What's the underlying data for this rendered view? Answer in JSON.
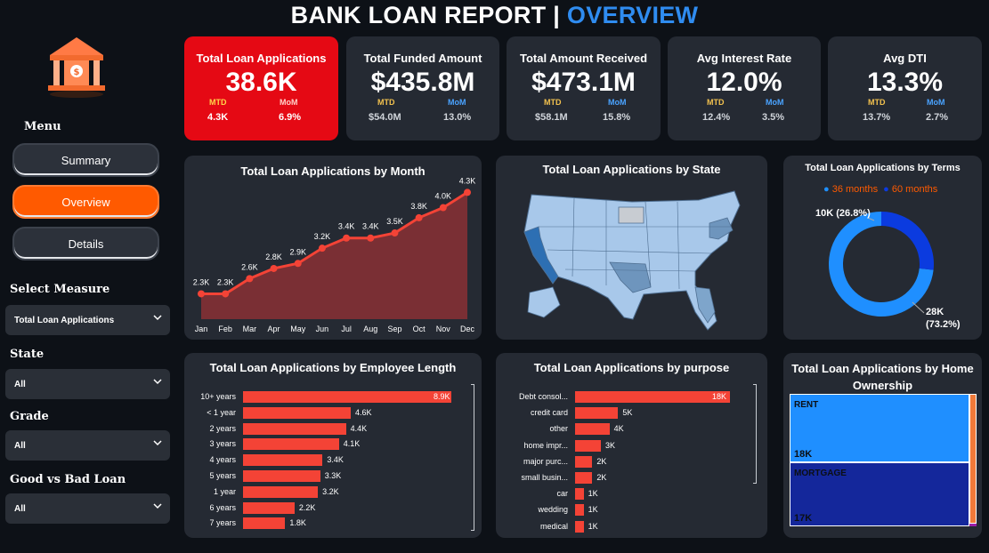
{
  "header": {
    "title_main": "BANK LOAN REPORT | ",
    "title_highlight": "OVERVIEW"
  },
  "sidebar": {
    "menu_label": "Menu",
    "menu_items": [
      {
        "label": "Summary",
        "active": false
      },
      {
        "label": "Overview",
        "active": true
      },
      {
        "label": "Details",
        "active": false
      }
    ],
    "filters": [
      {
        "label": "Select Measure",
        "value": "Total Loan Applications"
      },
      {
        "label": "State",
        "value": "All"
      },
      {
        "label": "Grade",
        "value": "All"
      },
      {
        "label": "Good vs Bad Loan",
        "value": "All"
      }
    ]
  },
  "kpis": [
    {
      "label": "Total Loan Applications",
      "value": "38.6K",
      "mtd_label": "MTD",
      "mom_label": "MoM",
      "mtd": "4.3K",
      "mom": "6.9%"
    },
    {
      "label": "Total Funded Amount",
      "value": "$435.8M",
      "mtd_label": "MTD",
      "mom_label": "MoM",
      "mtd": "$54.0M",
      "mom": "13.0%"
    },
    {
      "label": "Total Amount Received",
      "value": "$473.1M",
      "mtd_label": "MTD",
      "mom_label": "MoM",
      "mtd": "$58.1M",
      "mom": "15.8%"
    },
    {
      "label": "Avg Interest Rate",
      "value": "12.0%",
      "mtd_label": "MTD",
      "mom_label": "MoM",
      "mtd": "12.4%",
      "mom": "3.5%"
    },
    {
      "label": "Avg DTI",
      "value": "13.3%",
      "mtd_label": "MTD",
      "mom_label": "MoM",
      "mtd": "13.7%",
      "mom": "2.7%"
    }
  ],
  "colors": {
    "accent": "#ff5a00",
    "highlight": "#2f8cf0",
    "bar": "#f44336",
    "kpi_active": "#e50914"
  },
  "chart_data": [
    {
      "type": "area",
      "title": "Total Loan Applications by Month",
      "categories": [
        "Jan",
        "Feb",
        "Mar",
        "Apr",
        "May",
        "Jun",
        "Jul",
        "Aug",
        "Sep",
        "Oct",
        "Nov",
        "Dec"
      ],
      "values": [
        2.3,
        2.3,
        2.6,
        2.8,
        2.9,
        3.2,
        3.4,
        3.4,
        3.5,
        3.8,
        4.0,
        4.3
      ],
      "labels": [
        "2.3K",
        "2.3K",
        "2.6K",
        "2.8K",
        "2.9K",
        "3.2K",
        "3.4K",
        "3.4K",
        "3.5K",
        "3.8K",
        "4.0K",
        "4.3K"
      ],
      "ylim": [
        1.8,
        4.5
      ]
    },
    {
      "type": "map",
      "title": "Total Loan Applications by State"
    },
    {
      "type": "pie",
      "title": "Total Loan Applications by Terms",
      "legend": [
        {
          "name": "36 months",
          "color": "#1f8fff"
        },
        {
          "name": "60 months",
          "color": "#0b3bdf"
        }
      ],
      "slices": [
        {
          "name": "36 months",
          "value": 73.2,
          "label_a": "28K",
          "label_b": "(73.2%)"
        },
        {
          "name": "60 months",
          "value": 26.8,
          "label_a": "10K (26.8%)",
          "label_b": ""
        }
      ]
    },
    {
      "type": "bar",
      "title": "Total Loan Applications by Employee Length",
      "categories": [
        "10+ years",
        "< 1 year",
        "2 years",
        "3 years",
        "4 years",
        "5 years",
        "1 year",
        "6 years",
        "7 years"
      ],
      "values": [
        8.9,
        4.6,
        4.4,
        4.1,
        3.4,
        3.3,
        3.2,
        2.2,
        1.8
      ],
      "labels": [
        "8.9K",
        "4.6K",
        "4.4K",
        "4.1K",
        "3.4K",
        "3.3K",
        "3.2K",
        "2.2K",
        "1.8K"
      ]
    },
    {
      "type": "bar",
      "title": "Total Loan Applications by purpose",
      "categories": [
        "Debt consol...",
        "credit card",
        "other",
        "home impr...",
        "major purc...",
        "small busin...",
        "car",
        "wedding",
        "medical"
      ],
      "values": [
        18,
        5,
        4,
        3,
        2,
        2,
        1,
        1,
        1
      ],
      "labels": [
        "18K",
        "5K",
        "4K",
        "3K",
        "2K",
        "2K",
        "1K",
        "1K",
        "1K"
      ]
    },
    {
      "type": "treemap",
      "title": "Total Loan Applications by Home Ownership",
      "items": [
        {
          "name": "RENT",
          "label": "18K",
          "value": 18,
          "color": "#1f8fff"
        },
        {
          "name": "MORTGAGE",
          "label": "17K",
          "value": 17,
          "color": "#14279b"
        }
      ]
    }
  ]
}
